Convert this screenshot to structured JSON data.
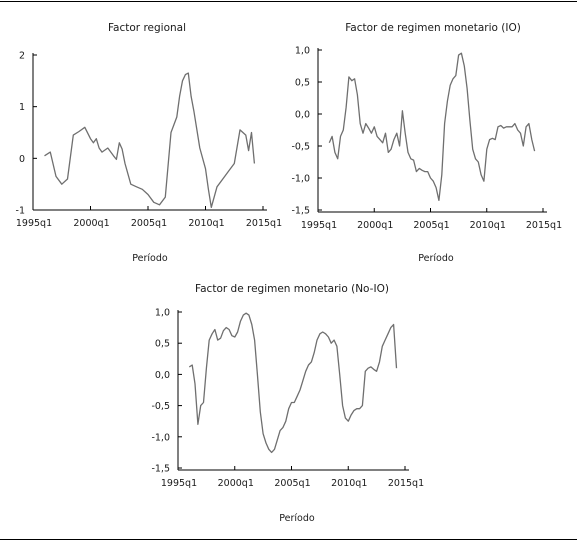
{
  "chart_data": [
    {
      "type": "line",
      "title": "Factor regional",
      "xlabel": "Período",
      "ylabel": "",
      "xlim": [
        1995.0,
        2015.0
      ],
      "ylim": [
        -1,
        2
      ],
      "yticks": [
        "-1",
        "0",
        "1",
        "2"
      ],
      "ytick_values": [
        -1,
        0,
        1,
        2
      ],
      "xticks": [
        "1995q1",
        "2000q1",
        "2005q1",
        "2010q1",
        "2015q1"
      ],
      "xtick_values": [
        1995.0,
        2000.0,
        2005.0,
        2010.0,
        2015.0
      ],
      "series": [
        {
          "x": [
            1996.0,
            1996.5,
            1997.0,
            1997.5,
            1998.0,
            1998.5,
            1999.0,
            1999.5,
            2000.0,
            2000.25,
            2000.5,
            2000.75,
            2001.0,
            2001.5,
            2002.0,
            2002.25,
            2002.5,
            2002.75,
            2003.0,
            2003.5,
            2004.0,
            2004.5,
            2005.0,
            2005.5,
            2006.0,
            2006.5,
            2007.0,
            2007.5,
            2007.75,
            2008.0,
            2008.25,
            2008.5,
            2008.75,
            2009.0,
            2009.5,
            2010.0,
            2010.25,
            2010.5,
            2011.0,
            2011.5,
            2012.0,
            2012.5,
            2013.0,
            2013.5,
            2013.75,
            2014.0,
            2014.25
          ],
          "y": [
            0.05,
            0.12,
            -0.35,
            -0.5,
            -0.4,
            0.45,
            0.52,
            0.6,
            0.38,
            0.3,
            0.38,
            0.2,
            0.12,
            0.2,
            0.05,
            -0.02,
            0.3,
            0.18,
            -0.1,
            -0.5,
            -0.55,
            -0.6,
            -0.7,
            -0.85,
            -0.9,
            -0.75,
            0.5,
            0.8,
            1.2,
            1.5,
            1.62,
            1.65,
            1.2,
            0.9,
            0.2,
            -0.2,
            -0.6,
            -0.95,
            -0.55,
            -0.4,
            -0.25,
            -0.1,
            0.55,
            0.45,
            0.15,
            0.5,
            -0.1
          ]
        }
      ]
    },
    {
      "type": "line",
      "title": "Factor de regimen monetario (IO)",
      "xlabel": "Período",
      "ylabel": "",
      "xlim": [
        1995.0,
        2015.0
      ],
      "ylim": [
        -1.5,
        1.0
      ],
      "yticks": [
        "-1,5",
        "-1,0",
        "-0,5",
        "0,0",
        "0,5",
        "1,0"
      ],
      "ytick_values": [
        -1.5,
        -1.0,
        -0.5,
        0.0,
        0.5,
        1.0
      ],
      "xticks": [
        "1995q1",
        "2000q1",
        "2005q1",
        "2010q1",
        "2015q1"
      ],
      "xtick_values": [
        1995.0,
        2000.0,
        2005.0,
        2010.0,
        2015.0
      ],
      "series": [
        {
          "x": [
            1996.0,
            1996.25,
            1996.5,
            1996.75,
            1997.0,
            1997.25,
            1997.5,
            1997.75,
            1998.0,
            1998.25,
            1998.5,
            1998.75,
            1999.0,
            1999.25,
            1999.5,
            1999.75,
            2000.0,
            2000.25,
            2000.5,
            2000.75,
            2001.0,
            2001.25,
            2001.5,
            2001.75,
            2002.0,
            2002.25,
            2002.5,
            2002.75,
            2003.0,
            2003.25,
            2003.5,
            2003.75,
            2004.0,
            2004.25,
            2004.5,
            2004.75,
            2005.0,
            2005.25,
            2005.5,
            2005.75,
            2006.0,
            2006.25,
            2006.5,
            2006.75,
            2007.0,
            2007.25,
            2007.5,
            2007.75,
            2008.0,
            2008.25,
            2008.5,
            2008.75,
            2009.0,
            2009.25,
            2009.5,
            2009.75,
            2010.0,
            2010.25,
            2010.5,
            2010.75,
            2011.0,
            2011.25,
            2011.5,
            2011.75,
            2012.0,
            2012.25,
            2012.5,
            2012.75,
            2013.0,
            2013.25,
            2013.5,
            2013.75,
            2014.0,
            2014.25
          ],
          "y": [
            -0.45,
            -0.35,
            -0.6,
            -0.7,
            -0.35,
            -0.25,
            0.1,
            0.58,
            0.52,
            0.55,
            0.3,
            -0.15,
            -0.3,
            -0.15,
            -0.22,
            -0.3,
            -0.2,
            -0.35,
            -0.4,
            -0.45,
            -0.3,
            -0.6,
            -0.55,
            -0.4,
            -0.3,
            -0.5,
            0.05,
            -0.3,
            -0.6,
            -0.7,
            -0.72,
            -0.9,
            -0.85,
            -0.88,
            -0.9,
            -0.9,
            -1.0,
            -1.05,
            -1.15,
            -1.35,
            -0.95,
            -0.15,
            0.2,
            0.45,
            0.55,
            0.6,
            0.92,
            0.95,
            0.75,
            0.4,
            -0.1,
            -0.55,
            -0.7,
            -0.75,
            -0.95,
            -1.05,
            -0.55,
            -0.4,
            -0.38,
            -0.4,
            -0.2,
            -0.18,
            -0.22,
            -0.2,
            -0.2,
            -0.2,
            -0.15,
            -0.25,
            -0.3,
            -0.5,
            -0.2,
            -0.15,
            -0.4,
            -0.58
          ]
        }
      ]
    },
    {
      "type": "line",
      "title": "Factor de regimen monetario (No-IO)",
      "xlabel": "Período",
      "ylabel": "",
      "xlim": [
        1995.0,
        2015.0
      ],
      "ylim": [
        -1.5,
        1.0
      ],
      "yticks": [
        "-1,5",
        "-1,0",
        "-0,5",
        "0,0",
        "0,5",
        "1,0"
      ],
      "ytick_values": [
        -1.5,
        -1.0,
        -0.5,
        0.0,
        0.5,
        1.0
      ],
      "xticks": [
        "1995q1",
        "2000q1",
        "2005q1",
        "2010q1",
        "2015q1"
      ],
      "xtick_values": [
        1995.0,
        2000.0,
        2005.0,
        2010.0,
        2015.0
      ],
      "series": [
        {
          "x": [
            1996.0,
            1996.25,
            1996.5,
            1996.75,
            1997.0,
            1997.25,
            1997.5,
            1997.75,
            1998.0,
            1998.25,
            1998.5,
            1998.75,
            1999.0,
            1999.25,
            1999.5,
            1999.75,
            2000.0,
            2000.25,
            2000.5,
            2000.75,
            2001.0,
            2001.25,
            2001.5,
            2001.75,
            2002.0,
            2002.25,
            2002.5,
            2002.75,
            2003.0,
            2003.25,
            2003.5,
            2003.75,
            2004.0,
            2004.25,
            2004.5,
            2004.75,
            2005.0,
            2005.25,
            2005.5,
            2005.75,
            2006.0,
            2006.25,
            2006.5,
            2006.75,
            2007.0,
            2007.25,
            2007.5,
            2007.75,
            2008.0,
            2008.25,
            2008.5,
            2008.75,
            2009.0,
            2009.25,
            2009.5,
            2009.75,
            2010.0,
            2010.25,
            2010.5,
            2010.75,
            2011.0,
            2011.25,
            2011.5,
            2011.75,
            2012.0,
            2012.25,
            2012.5,
            2012.75,
            2013.0,
            2013.25,
            2013.5,
            2013.75,
            2014.0,
            2014.25
          ],
          "y": [
            0.12,
            0.15,
            -0.15,
            -0.8,
            -0.5,
            -0.45,
            0.1,
            0.55,
            0.65,
            0.72,
            0.55,
            0.58,
            0.7,
            0.75,
            0.72,
            0.62,
            0.6,
            0.68,
            0.85,
            0.95,
            0.98,
            0.95,
            0.8,
            0.55,
            0.0,
            -0.6,
            -0.95,
            -1.1,
            -1.2,
            -1.25,
            -1.2,
            -1.05,
            -0.9,
            -0.85,
            -0.75,
            -0.55,
            -0.45,
            -0.45,
            -0.35,
            -0.25,
            -0.1,
            0.05,
            0.15,
            0.2,
            0.35,
            0.55,
            0.65,
            0.68,
            0.65,
            0.6,
            0.5,
            0.55,
            0.45,
            0.0,
            -0.5,
            -0.7,
            -0.75,
            -0.65,
            -0.58,
            -0.55,
            -0.55,
            -0.5,
            0.05,
            0.1,
            0.12,
            0.08,
            0.05,
            0.2,
            0.45,
            0.55,
            0.65,
            0.75,
            0.8,
            0.1
          ]
        }
      ]
    }
  ]
}
